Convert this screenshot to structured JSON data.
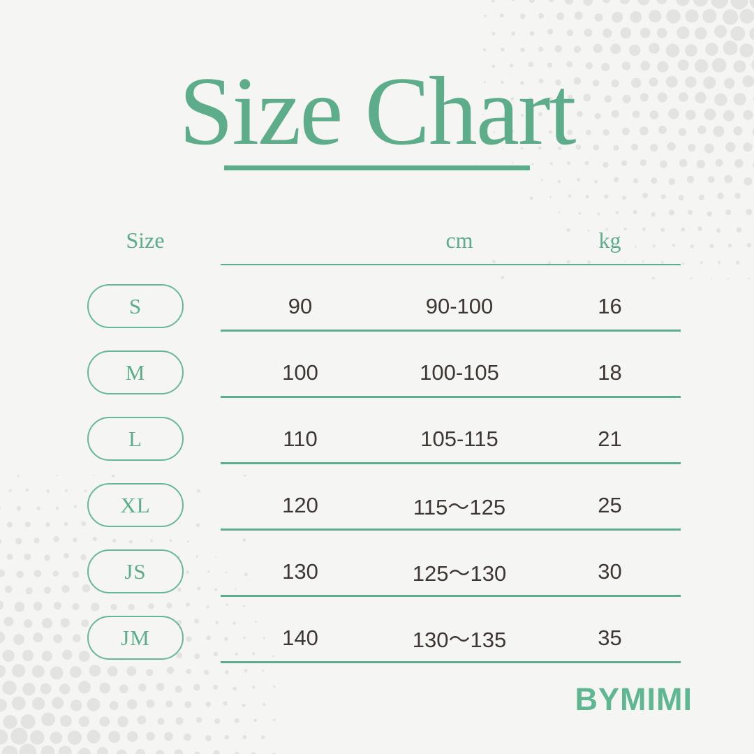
{
  "colors": {
    "accent": "#5dac8a",
    "accent_border": "#68b896",
    "ink": "#3e3632",
    "background": "#f5f5f3",
    "halftone_dot": "#e3e3e2",
    "brand_green": "#5fb791"
  },
  "title": {
    "text": "Size Chart"
  },
  "brand": {
    "text": "BYMIMI"
  },
  "table": {
    "headers": {
      "size": "Size",
      "value": "",
      "cm": "cm",
      "kg": "kg"
    },
    "rows": [
      {
        "size": "S",
        "value": "90",
        "cm": "90-100",
        "kg": "16"
      },
      {
        "size": "M",
        "value": "100",
        "cm": "100-105",
        "kg": "18"
      },
      {
        "size": "L",
        "value": "110",
        "cm": "105-115",
        "kg": "21"
      },
      {
        "size": "XL",
        "value": "120",
        "cm": "115〜125",
        "kg": "25"
      },
      {
        "size": "JS",
        "value": "130",
        "cm": "125〜130",
        "kg": "30"
      },
      {
        "size": "JM",
        "value": "140",
        "cm": "130〜135",
        "kg": "35"
      }
    ]
  },
  "chart_data": {
    "type": "table",
    "title": "Size Chart",
    "columns": [
      "Size",
      "",
      "cm",
      "kg"
    ],
    "rows": [
      [
        "S",
        "90",
        "90-100",
        "16"
      ],
      [
        "M",
        "100",
        "100-105",
        "18"
      ],
      [
        "L",
        "110",
        "105-115",
        "21"
      ],
      [
        "XL",
        "120",
        "115〜125",
        "25"
      ],
      [
        "JS",
        "130",
        "125〜130",
        "30"
      ],
      [
        "JM",
        "140",
        "130〜135",
        "35"
      ]
    ]
  }
}
